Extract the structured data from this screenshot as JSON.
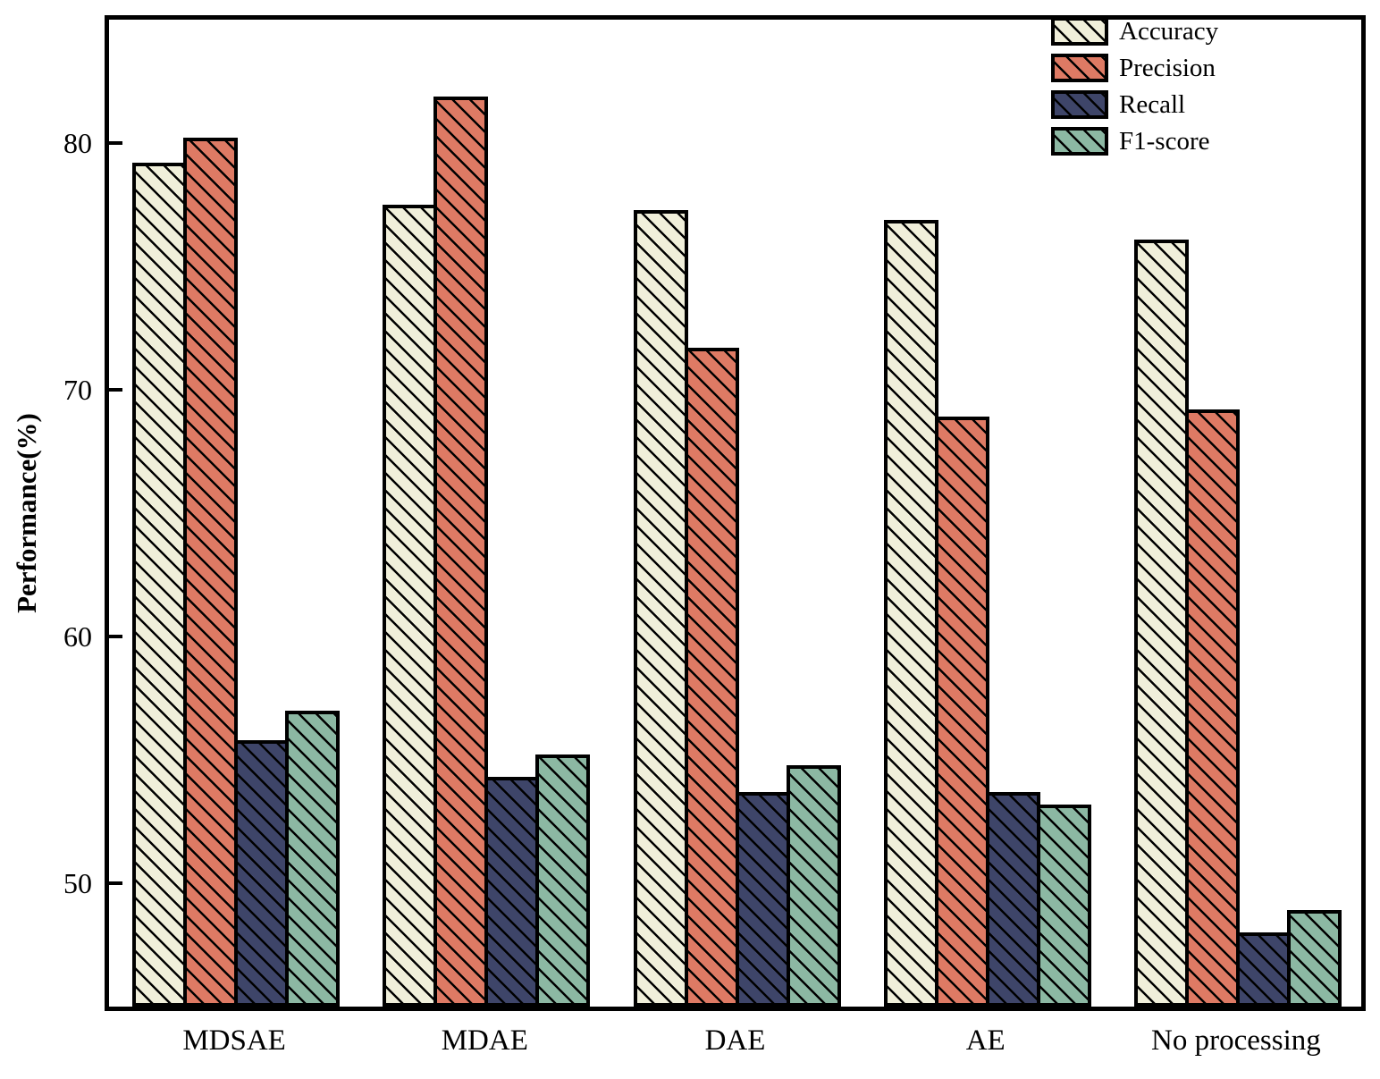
{
  "figure": {
    "ylabel": "Performance(%)"
  },
  "chart_data": {
    "type": "bar",
    "categories": [
      "MDSAE",
      "MDAE",
      "DAE",
      "AE",
      "No processing"
    ],
    "series": [
      {
        "name": "Accuracy",
        "color": "#F0EFDA",
        "values": [
          79.2,
          77.5,
          77.3,
          76.9,
          76.1
        ]
      },
      {
        "name": "Precision",
        "color": "#DE7A64",
        "values": [
          80.2,
          81.9,
          71.7,
          68.9,
          69.2
        ]
      },
      {
        "name": "Recall",
        "color": "#3E4569",
        "values": [
          55.8,
          54.3,
          53.7,
          53.7,
          48.0
        ]
      },
      {
        "name": "F1-score",
        "color": "#8CB8A3",
        "values": [
          57.0,
          55.2,
          54.8,
          53.2,
          48.9
        ]
      }
    ],
    "title": "",
    "xlabel": "",
    "ylabel": "Performance(%)",
    "ylim": [
      45,
      85
    ],
    "yticks": [
      50,
      60,
      70,
      80
    ],
    "grid": false,
    "hatch_pattern": "\\",
    "legend_position": "top-right",
    "frame_color": "#000000",
    "background_color": "#FFFFFF"
  }
}
